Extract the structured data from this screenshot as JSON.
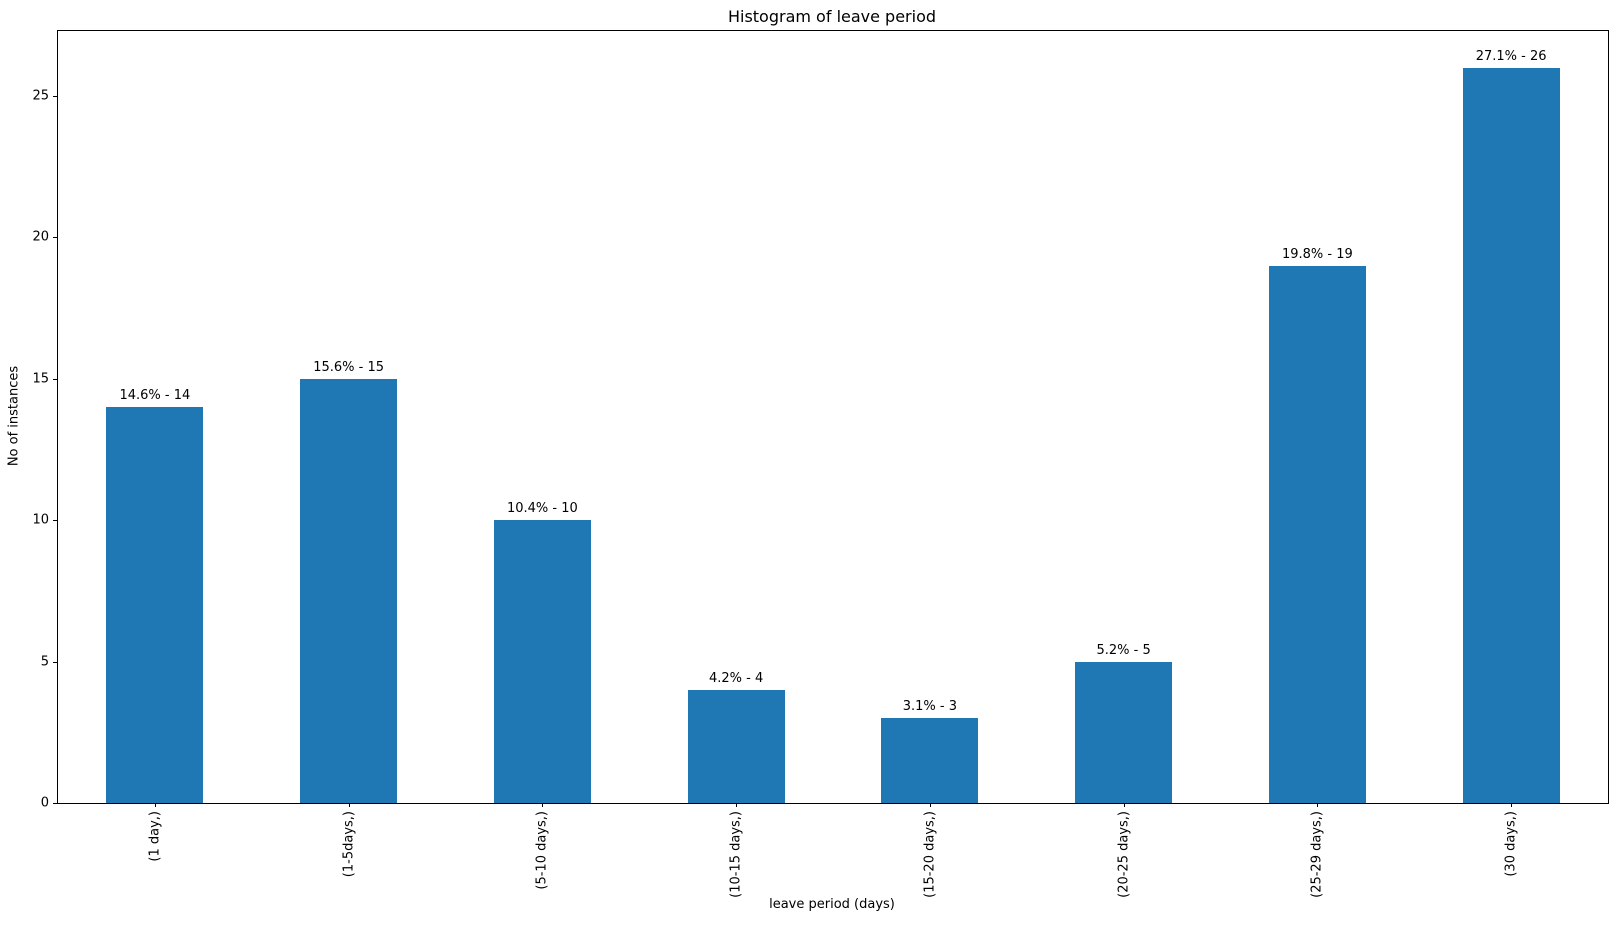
{
  "chart_data": {
    "type": "bar",
    "title": "Histogram of leave period",
    "xlabel": "leave period (days)",
    "ylabel": "No of instances",
    "categories": [
      "(1 day,)",
      "(1-5days,)",
      "(5-10 days,)",
      "(10-15 days,)",
      "(15-20 days,)",
      "(20-25 days,)",
      "(25-29 days,)",
      "(30 days,)"
    ],
    "values": [
      14,
      15,
      10,
      4,
      3,
      5,
      19,
      26
    ],
    "bar_labels": [
      "14.6% - 14",
      "15.6% - 15",
      "10.4% - 10",
      "4.2% - 4",
      "3.1% - 3",
      "5.2% - 5",
      "19.8% - 19",
      "27.1% - 26"
    ],
    "yticks": [
      0,
      5,
      10,
      15,
      20,
      25
    ],
    "ylim": [
      0,
      27.3
    ],
    "bar_color": "#1f77b4",
    "grid": false,
    "legend": null,
    "x_tick_rotation": "vertical"
  }
}
